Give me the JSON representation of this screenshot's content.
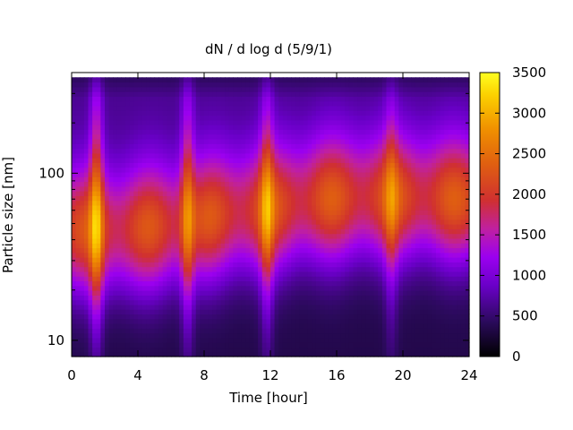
{
  "chart_data": {
    "type": "heatmap",
    "title": "dN / d log d (5/9/1)",
    "xlabel": "Time [hour]",
    "ylabel": "Particle size [nm]",
    "x_range": [
      0,
      24
    ],
    "x_ticks": [
      0,
      4,
      8,
      12,
      16,
      20,
      24
    ],
    "y_scale": "log",
    "y_range_nm": [
      8,
      400
    ],
    "y_data_top_nm": 380,
    "y_ticks": [
      10,
      100
    ],
    "colorbar": {
      "range": [
        0,
        3500
      ],
      "ticks": [
        0,
        500,
        1000,
        1500,
        2000,
        2500,
        3000,
        3500
      ],
      "palette": "black-purple-red-orange-yellow"
    },
    "size_distribution_shape": {
      "mode_center_nm": [
        45,
        45,
        48,
        55,
        60,
        68,
        70,
        70,
        68
      ],
      "mode_center_time_hour": [
        0,
        3,
        6,
        9,
        12,
        15,
        18,
        20,
        24
      ],
      "mode_peak_value_approx": 2300
    },
    "notable_events": [
      {
        "time_hour": 1.5,
        "peak_value": 3200,
        "description": "tall vertical streak spanning ~12-300 nm"
      },
      {
        "time_hour": 7.0,
        "peak_value": 3000,
        "description": "maximum near 40 nm"
      },
      {
        "time_hour": 11.8,
        "peak_value": 2900,
        "description": "narrow vertical streak"
      },
      {
        "time_hour": 19.3,
        "peak_value": 2600,
        "description": "broad blob centered near 70 nm"
      }
    ],
    "grid": false,
    "legend": "colorbar-right"
  }
}
